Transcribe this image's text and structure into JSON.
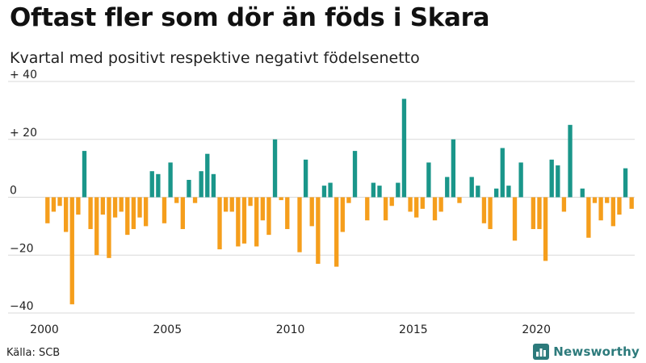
{
  "title": "Oftast fler som dör än föds i Skara",
  "subtitle": "Kvartal med positivt respektive negativt födelsenetto",
  "source": "Källa: SCB",
  "brand": "Newsworthy",
  "colors": {
    "positive": "#1a968a",
    "negative": "#f59e1c",
    "grid": "#d9d9d9",
    "brand": "#2c7a7b"
  },
  "icons": {
    "brand_logo": "bar-chart-logo-icon"
  },
  "chart_data": {
    "type": "bar",
    "x_start": "2000 Q1",
    "periods": [
      "2000 Q1",
      "2000 Q2",
      "2000 Q3",
      "2000 Q4",
      "2001 Q1",
      "2001 Q2",
      "2001 Q3",
      "2001 Q4",
      "2002 Q1",
      "2002 Q2",
      "2002 Q3",
      "2002 Q4",
      "2003 Q1",
      "2003 Q2",
      "2003 Q3",
      "2003 Q4",
      "2004 Q1",
      "2004 Q2",
      "2004 Q3",
      "2004 Q4",
      "2005 Q1",
      "2005 Q2",
      "2005 Q3",
      "2005 Q4",
      "2006 Q1",
      "2006 Q2",
      "2006 Q3",
      "2006 Q4",
      "2007 Q1",
      "2007 Q2",
      "2007 Q3",
      "2007 Q4",
      "2008 Q1",
      "2008 Q2",
      "2008 Q3",
      "2008 Q4",
      "2009 Q1",
      "2009 Q2",
      "2009 Q3",
      "2009 Q4",
      "2010 Q1",
      "2010 Q2",
      "2010 Q3",
      "2010 Q4",
      "2011 Q1",
      "2011 Q2",
      "2011 Q3",
      "2011 Q4",
      "2012 Q1",
      "2012 Q2",
      "2012 Q3",
      "2012 Q4",
      "2013 Q1",
      "2013 Q2",
      "2013 Q3",
      "2013 Q4",
      "2014 Q1",
      "2014 Q2",
      "2014 Q3",
      "2014 Q4",
      "2015 Q1",
      "2015 Q2",
      "2015 Q3",
      "2015 Q4",
      "2016 Q1",
      "2016 Q2",
      "2016 Q3",
      "2016 Q4",
      "2017 Q1",
      "2017 Q2",
      "2017 Q3",
      "2017 Q4",
      "2018 Q1",
      "2018 Q2",
      "2018 Q3",
      "2018 Q4",
      "2019 Q1",
      "2019 Q2",
      "2019 Q3",
      "2019 Q4",
      "2020 Q1",
      "2020 Q2",
      "2020 Q3",
      "2020 Q4",
      "2021 Q1",
      "2021 Q2",
      "2021 Q3",
      "2021 Q4",
      "2022 Q1",
      "2022 Q2",
      "2022 Q3",
      "2022 Q4",
      "2023 Q1",
      "2023 Q2",
      "2023 Q3",
      "2023 Q4"
    ],
    "values": [
      -9,
      -5,
      -3,
      -12,
      -37,
      -6,
      16,
      -11,
      -20,
      -6,
      -21,
      -7,
      -5,
      -13,
      -11,
      -7,
      -10,
      9,
      8,
      -9,
      12,
      -2,
      -11,
      6,
      -2,
      9,
      15,
      8,
      -18,
      -5,
      -5,
      -17,
      -16,
      -3,
      -17,
      -8,
      -13,
      20,
      -1,
      -11,
      0,
      -19,
      13,
      -10,
      -23,
      4,
      5,
      -24,
      -12,
      -2,
      16,
      0,
      -8,
      5,
      4,
      -8,
      -3,
      5,
      34,
      -5,
      -7,
      -4,
      12,
      -8,
      -5,
      7,
      20,
      -2,
      0,
      7,
      4,
      -9,
      -11,
      3,
      17,
      4,
      -15,
      12,
      0,
      -11,
      -11,
      -22,
      13,
      11,
      -5,
      25,
      0,
      3,
      -14,
      -2,
      -8,
      -2,
      -10,
      -6,
      10,
      -4
    ],
    "x_ticks": [
      "2000",
      "2005",
      "2010",
      "2015",
      "2020"
    ],
    "y_ticks": [
      "−40",
      "−20",
      "0",
      "+ 20",
      "+ 40"
    ],
    "y_tick_values": [
      -40,
      -20,
      0,
      20,
      40
    ],
    "ylim": [
      -40,
      40
    ],
    "grid": true,
    "legend": "none"
  }
}
